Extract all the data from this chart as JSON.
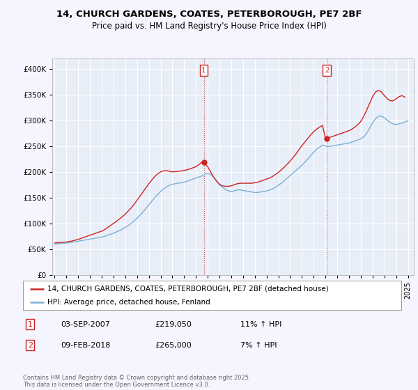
{
  "title_line1": "14, CHURCH GARDENS, COATES, PETERBOROUGH, PE7 2BF",
  "title_line2": "Price paid vs. HM Land Registry's House Price Index (HPI)",
  "ylim": [
    0,
    420000
  ],
  "yticks": [
    0,
    50000,
    100000,
    150000,
    200000,
    250000,
    300000,
    350000,
    400000
  ],
  "ytick_labels": [
    "£0",
    "£50K",
    "£100K",
    "£150K",
    "£200K",
    "£250K",
    "£300K",
    "£350K",
    "£400K"
  ],
  "hpi_color": "#7ab0d4",
  "price_color": "#cc2222",
  "bg_color": "#f5f5ff",
  "plot_bg": "#e8eef8",
  "grid_color": "#ffffff",
  "legend_label_price": "14, CHURCH GARDENS, COATES, PETERBOROUGH, PE7 2BF (detached house)",
  "legend_label_hpi": "HPI: Average price, detached house, Fenland",
  "footnote": "Contains HM Land Registry data © Crown copyright and database right 2025.\nThis data is licensed under the Open Government Licence v3.0.",
  "sale1_label": "1",
  "sale1_date": "03-SEP-2007",
  "sale1_price": "£219,050",
  "sale1_note": "11% ↑ HPI",
  "sale2_label": "2",
  "sale2_date": "09-FEB-2018",
  "sale2_price": "£265,000",
  "sale2_note": "7% ↑ HPI",
  "sale1_x": 2007.67,
  "sale1_y": 219050,
  "sale2_x": 2018.11,
  "sale2_y": 265000,
  "hpi_years": [
    1995.0,
    1995.25,
    1995.5,
    1995.75,
    1996.0,
    1996.25,
    1996.5,
    1996.75,
    1997.0,
    1997.25,
    1997.5,
    1997.75,
    1998.0,
    1998.25,
    1998.5,
    1998.75,
    1999.0,
    1999.25,
    1999.5,
    1999.75,
    2000.0,
    2000.25,
    2000.5,
    2000.75,
    2001.0,
    2001.25,
    2001.5,
    2001.75,
    2002.0,
    2002.25,
    2002.5,
    2002.75,
    2003.0,
    2003.25,
    2003.5,
    2003.75,
    2004.0,
    2004.25,
    2004.5,
    2004.75,
    2005.0,
    2005.25,
    2005.5,
    2005.75,
    2006.0,
    2006.25,
    2006.5,
    2006.75,
    2007.0,
    2007.25,
    2007.5,
    2007.75,
    2008.0,
    2008.25,
    2008.5,
    2008.75,
    2009.0,
    2009.25,
    2009.5,
    2009.75,
    2010.0,
    2010.25,
    2010.5,
    2010.75,
    2011.0,
    2011.25,
    2011.5,
    2011.75,
    2012.0,
    2012.25,
    2012.5,
    2012.75,
    2013.0,
    2013.25,
    2013.5,
    2013.75,
    2014.0,
    2014.25,
    2014.5,
    2014.75,
    2015.0,
    2015.25,
    2015.5,
    2015.75,
    2016.0,
    2016.25,
    2016.5,
    2016.75,
    2017.0,
    2017.25,
    2017.5,
    2017.75,
    2018.0,
    2018.25,
    2018.5,
    2018.75,
    2019.0,
    2019.25,
    2019.5,
    2019.75,
    2020.0,
    2020.25,
    2020.5,
    2020.75,
    2021.0,
    2021.25,
    2021.5,
    2021.75,
    2022.0,
    2022.25,
    2022.5,
    2022.75,
    2023.0,
    2023.25,
    2023.5,
    2023.75,
    2024.0,
    2024.25,
    2024.5,
    2024.75,
    2025.0
  ],
  "hpi_values": [
    60000,
    60500,
    61000,
    61500,
    62000,
    62500,
    63500,
    64500,
    65500,
    66500,
    67500,
    68500,
    69500,
    70500,
    71500,
    72500,
    73500,
    75000,
    77000,
    79000,
    81000,
    83500,
    86000,
    89000,
    92000,
    96000,
    100000,
    105000,
    110000,
    116000,
    122000,
    129000,
    136000,
    143000,
    150000,
    156000,
    162000,
    167000,
    171000,
    174000,
    176000,
    177000,
    178000,
    179000,
    180000,
    182000,
    184000,
    186000,
    188000,
    190000,
    192000,
    195000,
    197000,
    195000,
    190000,
    183000,
    175000,
    170000,
    166000,
    163000,
    162000,
    163000,
    165000,
    165000,
    164000,
    163000,
    162000,
    161000,
    160000,
    160000,
    161000,
    162000,
    163000,
    165000,
    167000,
    170000,
    174000,
    178000,
    183000,
    188000,
    193000,
    198000,
    203000,
    208000,
    213000,
    219000,
    225000,
    232000,
    238000,
    244000,
    248000,
    252000,
    250000,
    249000,
    250000,
    251000,
    252000,
    253000,
    254000,
    255000,
    256000,
    258000,
    260000,
    262000,
    264000,
    268000,
    275000,
    285000,
    295000,
    303000,
    308000,
    308000,
    305000,
    300000,
    296000,
    293000,
    292000,
    293000,
    295000,
    297000,
    299000
  ],
  "price_years": [
    1995.0,
    1995.25,
    1995.5,
    1995.75,
    1996.0,
    1996.25,
    1996.5,
    1996.75,
    1997.0,
    1997.25,
    1997.5,
    1997.75,
    1998.0,
    1998.25,
    1998.5,
    1998.75,
    1999.0,
    1999.25,
    1999.5,
    1999.75,
    2000.0,
    2000.25,
    2000.5,
    2000.75,
    2001.0,
    2001.25,
    2001.5,
    2001.75,
    2002.0,
    2002.25,
    2002.5,
    2002.75,
    2003.0,
    2003.25,
    2003.5,
    2003.75,
    2004.0,
    2004.25,
    2004.5,
    2004.75,
    2005.0,
    2005.25,
    2005.5,
    2005.75,
    2006.0,
    2006.25,
    2006.5,
    2006.75,
    2007.0,
    2007.25,
    2007.5,
    2007.75,
    2008.0,
    2008.25,
    2008.5,
    2008.75,
    2009.0,
    2009.25,
    2009.5,
    2009.75,
    2010.0,
    2010.25,
    2010.5,
    2010.75,
    2011.0,
    2011.25,
    2011.5,
    2011.75,
    2012.0,
    2012.25,
    2012.5,
    2012.75,
    2013.0,
    2013.25,
    2013.5,
    2013.75,
    2014.0,
    2014.25,
    2014.5,
    2014.75,
    2015.0,
    2015.25,
    2015.5,
    2015.75,
    2016.0,
    2016.25,
    2016.5,
    2016.75,
    2017.0,
    2017.25,
    2017.5,
    2017.75,
    2018.0,
    2018.25,
    2018.5,
    2018.75,
    2019.0,
    2019.25,
    2019.5,
    2019.75,
    2020.0,
    2020.25,
    2020.5,
    2020.75,
    2021.0,
    2021.25,
    2021.5,
    2021.75,
    2022.0,
    2022.25,
    2022.5,
    2022.75,
    2023.0,
    2023.25,
    2023.5,
    2023.75,
    2024.0,
    2024.25,
    2024.5,
    2024.75
  ],
  "price_values": [
    62000,
    62500,
    63000,
    63500,
    64000,
    65000,
    66000,
    67500,
    69000,
    71000,
    73000,
    75000,
    77000,
    79000,
    81000,
    83000,
    85000,
    88000,
    92000,
    96000,
    100000,
    104000,
    108500,
    113000,
    118000,
    124000,
    130000,
    137000,
    145000,
    153000,
    161000,
    169000,
    177000,
    184000,
    191000,
    196000,
    200000,
    202000,
    202500,
    201000,
    200000,
    200500,
    201000,
    202000,
    203000,
    204000,
    206000,
    208000,
    210000,
    214000,
    219050,
    216000,
    210000,
    200000,
    190000,
    182000,
    176000,
    173000,
    172000,
    172000,
    173000,
    175000,
    177000,
    178000,
    178000,
    178000,
    178000,
    178000,
    179000,
    180000,
    182000,
    184000,
    186000,
    188000,
    191000,
    195000,
    199000,
    204000,
    209000,
    215000,
    221000,
    228000,
    235000,
    243000,
    251000,
    258000,
    265000,
    272000,
    278000,
    283000,
    287000,
    290000,
    265000,
    266000,
    268000,
    270000,
    272000,
    274000,
    276000,
    278000,
    280000,
    283000,
    287000,
    292000,
    298000,
    308000,
    320000,
    333000,
    346000,
    355000,
    358000,
    355000,
    348000,
    342000,
    338000,
    338000,
    342000,
    346000,
    348000,
    345000
  ],
  "xticks": [
    1995,
    1996,
    1997,
    1998,
    1999,
    2000,
    2001,
    2002,
    2003,
    2004,
    2005,
    2006,
    2007,
    2008,
    2009,
    2010,
    2011,
    2012,
    2013,
    2014,
    2015,
    2016,
    2017,
    2018,
    2019,
    2020,
    2021,
    2022,
    2023,
    2024,
    2025
  ],
  "xlim": [
    1994.8,
    2025.5
  ]
}
